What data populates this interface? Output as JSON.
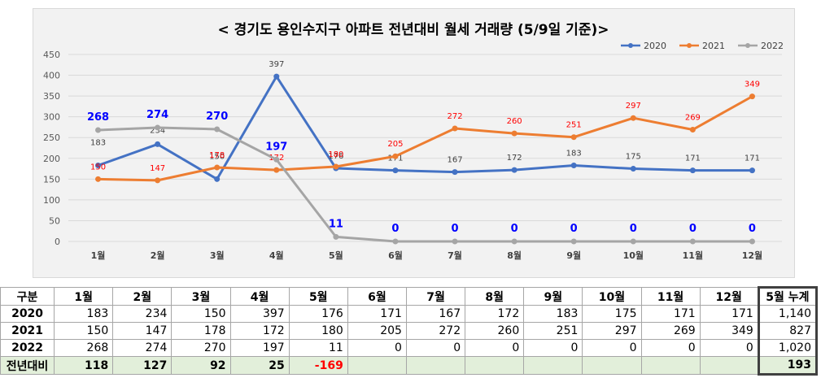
{
  "chart_data": {
    "type": "line",
    "title": "< 경기도 용인수지구  아파트 전년대비 월세 거래량 (5/9일 기준)>",
    "categories": [
      "1월",
      "2월",
      "3월",
      "4월",
      "5월",
      "6월",
      "7월",
      "8월",
      "9월",
      "10월",
      "11월",
      "12월"
    ],
    "ylim": [
      0,
      450
    ],
    "yticks": [
      0,
      50,
      100,
      150,
      200,
      250,
      300,
      350,
      400,
      450
    ],
    "grid": true,
    "legend": "top-right",
    "series": [
      {
        "name": "2020",
        "color": "#4472c4",
        "labelColor": "#404040",
        "values": [
          183,
          234,
          150,
          397,
          176,
          171,
          167,
          172,
          183,
          175,
          171,
          171
        ]
      },
      {
        "name": "2021",
        "color": "#ed7d31",
        "labelColor": "#ff0000",
        "values": [
          150,
          147,
          178,
          172,
          180,
          205,
          272,
          260,
          251,
          297,
          269,
          349
        ]
      },
      {
        "name": "2022",
        "color": "#a5a5a5",
        "labelColor": "#0000ff",
        "values": [
          268,
          274,
          270,
          197,
          11,
          0,
          0,
          0,
          0,
          0,
          0,
          0
        ]
      }
    ]
  },
  "table": {
    "headers": [
      "구분",
      "1월",
      "2월",
      "3월",
      "4월",
      "5월",
      "6월",
      "7월",
      "8월",
      "9월",
      "10월",
      "11월",
      "12월",
      "5월 누계"
    ],
    "rows": [
      [
        "2020",
        "183",
        "234",
        "150",
        "397",
        "176",
        "171",
        "167",
        "172",
        "183",
        "175",
        "171",
        "171",
        "1,140"
      ],
      [
        "2021",
        "150",
        "147",
        "178",
        "172",
        "180",
        "205",
        "272",
        "260",
        "251",
        "297",
        "269",
        "349",
        "827"
      ],
      [
        "2022",
        "268",
        "274",
        "270",
        "197",
        "11",
        "0",
        "0",
        "0",
        "0",
        "0",
        "0",
        "0",
        "1,020"
      ],
      [
        "전년대비",
        "118",
        "127",
        "92",
        "25",
        "-169",
        "",
        "",
        "",
        "",
        "",
        "",
        "",
        "193"
      ]
    ]
  }
}
